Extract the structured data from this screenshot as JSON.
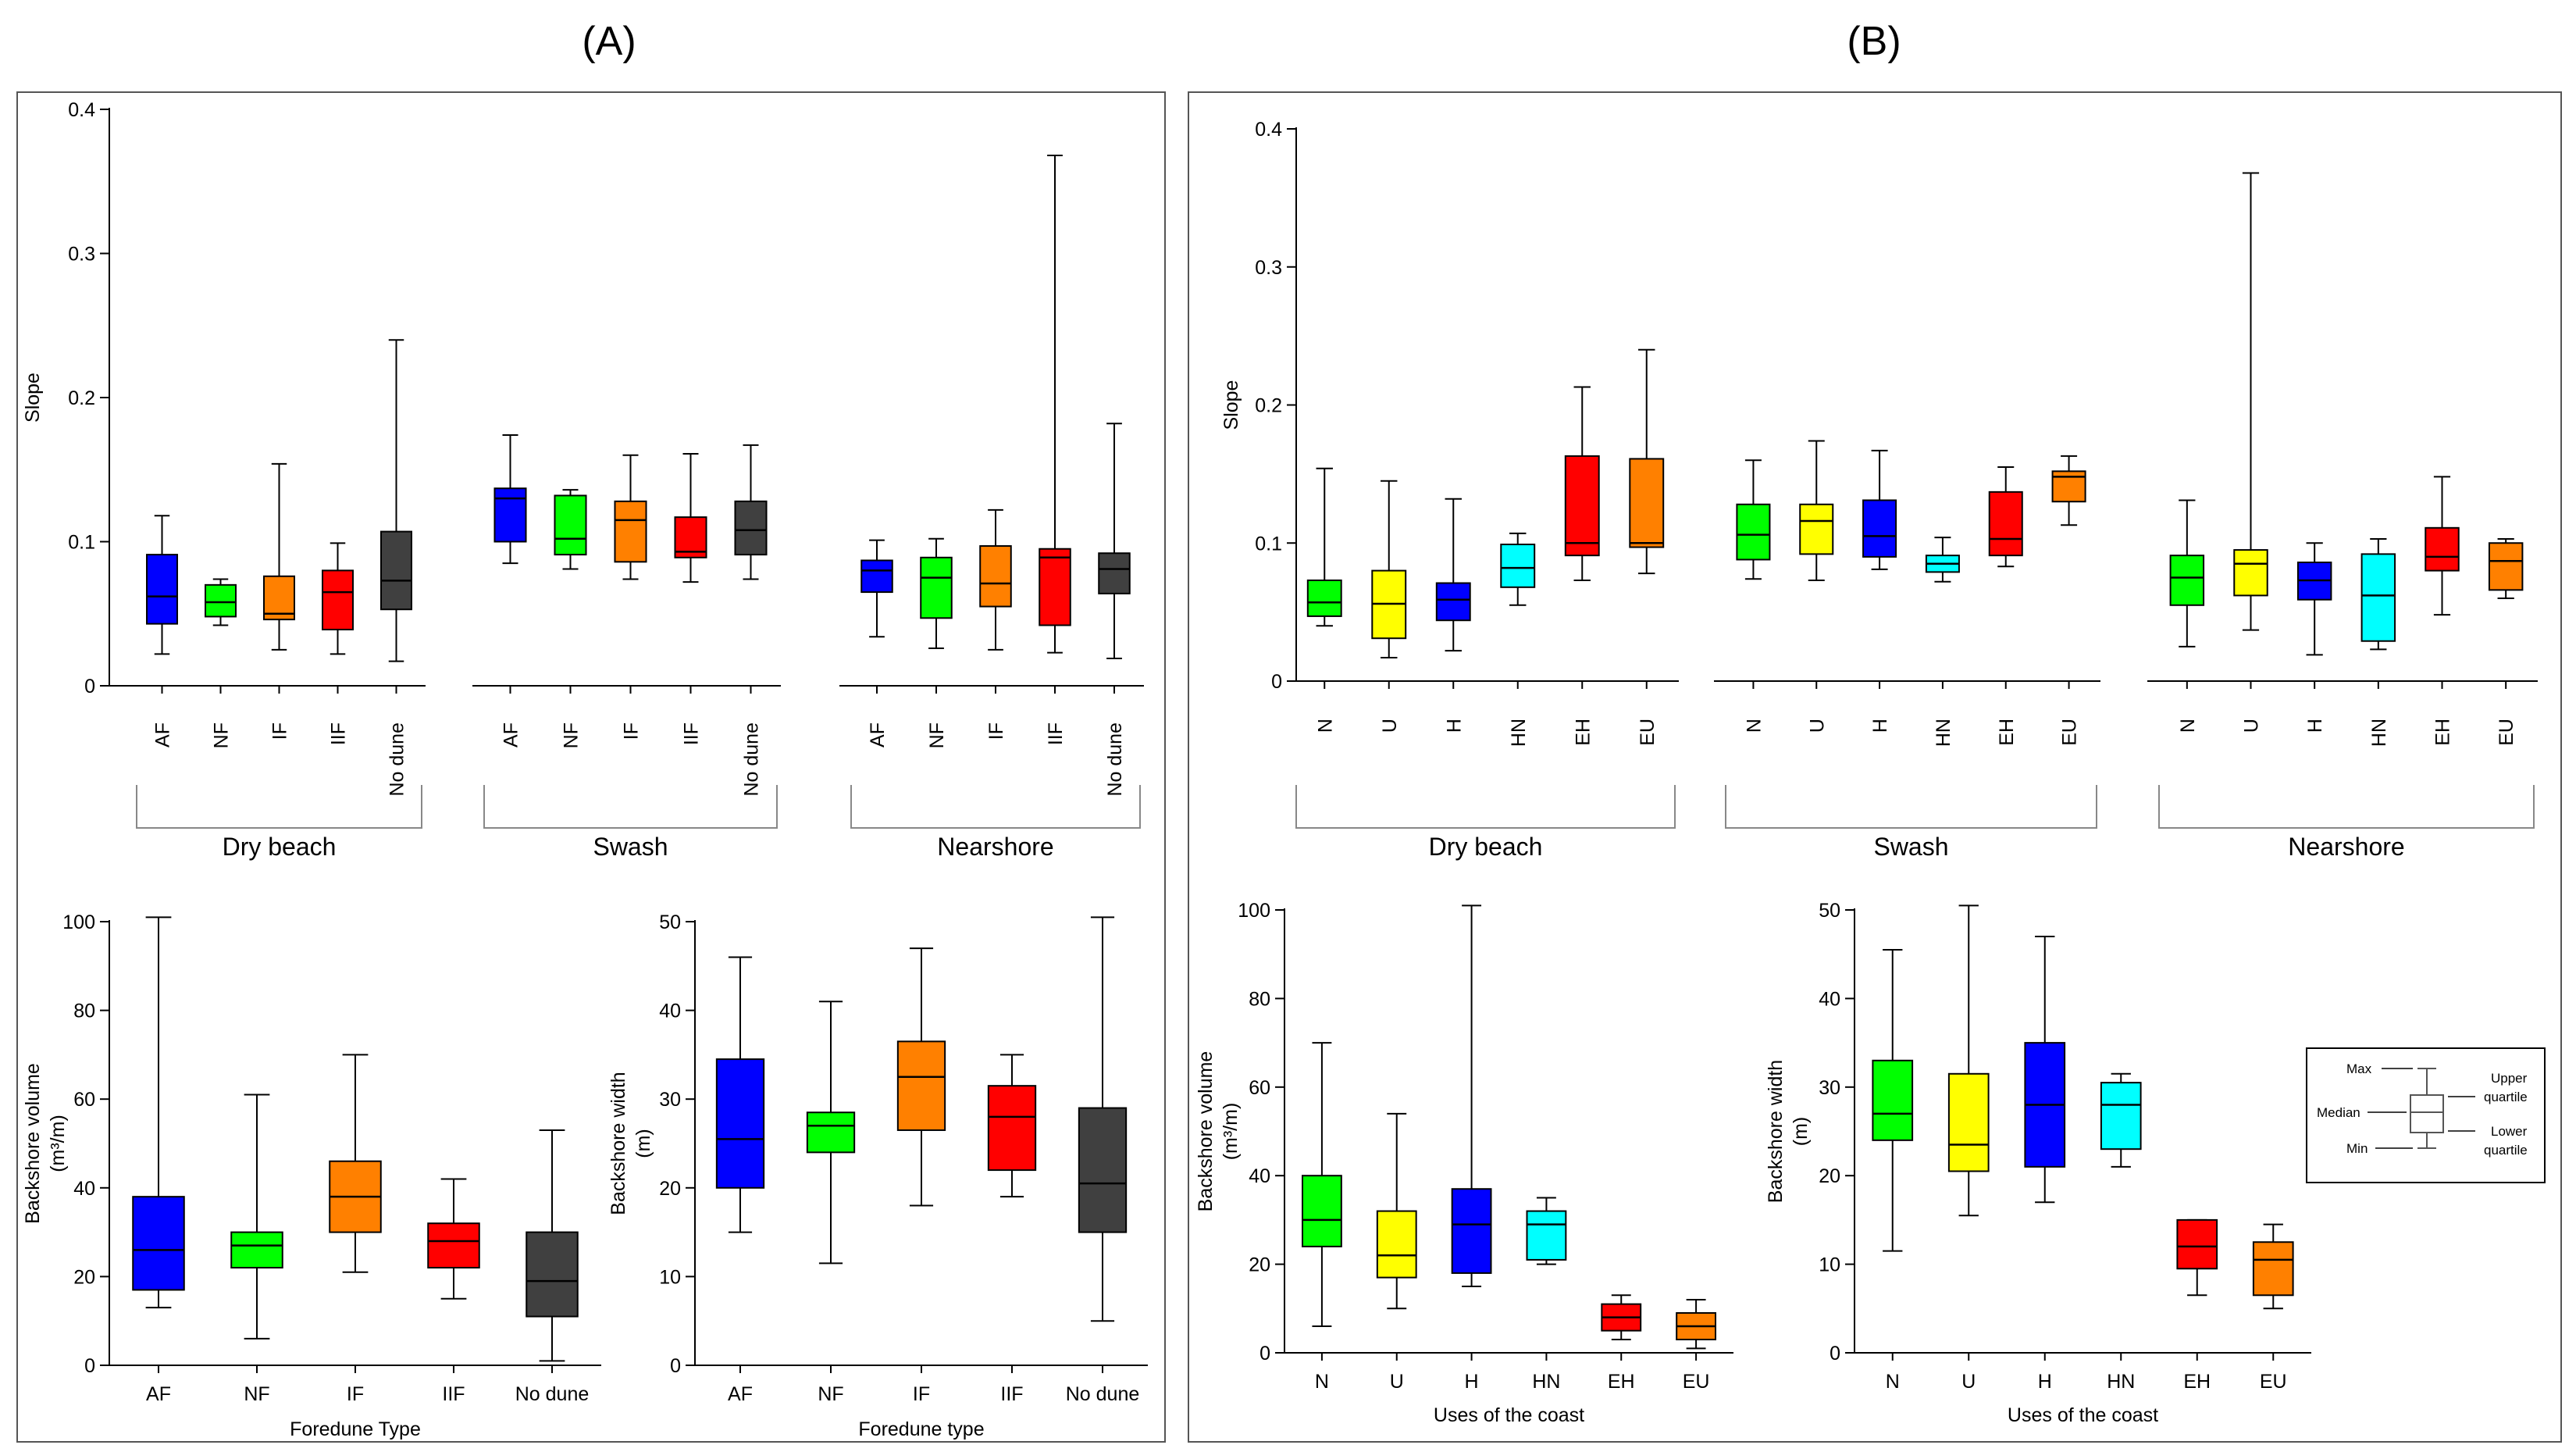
{
  "panels": [
    {
      "label": "(A)"
    },
    {
      "label": "(B)"
    }
  ],
  "colors": {
    "AF": "#0000ff",
    "NF": "#00ff00",
    "IF": "#ff8000",
    "IIF": "#ff0000",
    "No dune": "#404040",
    "N": "#00ff00",
    "U": "#ffff00",
    "H": "#0000ff",
    "HN": "#00ffff",
    "EH": "#ff0000",
    "EU": "#ff8000"
  },
  "legend": {
    "max": "Max",
    "median": "Median",
    "min": "Min",
    "upper1": "Upper",
    "upper2": "quartile",
    "lower1": "Lower",
    "lower2": "quartile"
  },
  "chart_data": [
    {
      "id": "A-slope",
      "type": "box",
      "ylabel": "Slope",
      "ylim": [
        0,
        0.4
      ],
      "yticks": [
        0,
        0.1,
        0.2,
        0.3,
        0.4
      ],
      "categories": [
        "AF",
        "NF",
        "IF",
        "IIF",
        "No dune"
      ],
      "groups": [
        {
          "name": "Dry beach",
          "boxes": [
            {
              "min": 0.022,
              "q1": 0.043,
              "median": 0.062,
              "q3": 0.091,
              "max": 0.118
            },
            {
              "min": 0.042,
              "q1": 0.048,
              "median": 0.058,
              "q3": 0.07,
              "max": 0.074
            },
            {
              "min": 0.025,
              "q1": 0.046,
              "median": 0.05,
              "q3": 0.076,
              "max": 0.154
            },
            {
              "min": 0.022,
              "q1": 0.039,
              "median": 0.065,
              "q3": 0.08,
              "max": 0.099
            },
            {
              "min": 0.017,
              "q1": 0.053,
              "median": 0.073,
              "q3": 0.107,
              "max": 0.24
            }
          ]
        },
        {
          "name": "Swash",
          "boxes": [
            {
              "min": 0.085,
              "q1": 0.1,
              "median": 0.13,
              "q3": 0.137,
              "max": 0.174
            },
            {
              "min": 0.081,
              "q1": 0.091,
              "median": 0.102,
              "q3": 0.132,
              "max": 0.136
            },
            {
              "min": 0.074,
              "q1": 0.086,
              "median": 0.115,
              "q3": 0.128,
              "max": 0.16
            },
            {
              "min": 0.072,
              "q1": 0.089,
              "median": 0.093,
              "q3": 0.117,
              "max": 0.161
            },
            {
              "min": 0.074,
              "q1": 0.091,
              "median": 0.108,
              "q3": 0.128,
              "max": 0.167
            }
          ]
        },
        {
          "name": "Nearshore",
          "boxes": [
            {
              "min": 0.034,
              "q1": 0.065,
              "median": 0.08,
              "q3": 0.087,
              "max": 0.101
            },
            {
              "min": 0.026,
              "q1": 0.047,
              "median": 0.075,
              "q3": 0.089,
              "max": 0.102
            },
            {
              "min": 0.025,
              "q1": 0.055,
              "median": 0.071,
              "q3": 0.097,
              "max": 0.122
            },
            {
              "min": 0.023,
              "q1": 0.042,
              "median": 0.089,
              "q3": 0.095,
              "max": 0.368
            },
            {
              "min": 0.019,
              "q1": 0.064,
              "median": 0.081,
              "q3": 0.092,
              "max": 0.182
            }
          ]
        }
      ]
    },
    {
      "id": "B-slope",
      "type": "box",
      "ylabel": "Slope",
      "ylim": [
        0,
        0.4
      ],
      "yticks": [
        0,
        0.1,
        0.2,
        0.3,
        0.4
      ],
      "categories": [
        "N",
        "U",
        "H",
        "HN",
        "EH",
        "EU"
      ],
      "groups": [
        {
          "name": "Dry beach",
          "boxes": [
            {
              "min": 0.04,
              "q1": 0.047,
              "median": 0.057,
              "q3": 0.073,
              "max": 0.154
            },
            {
              "min": 0.017,
              "q1": 0.031,
              "median": 0.056,
              "q3": 0.08,
              "max": 0.145
            },
            {
              "min": 0.022,
              "q1": 0.044,
              "median": 0.059,
              "q3": 0.071,
              "max": 0.132
            },
            {
              "min": 0.055,
              "q1": 0.068,
              "median": 0.082,
              "q3": 0.099,
              "max": 0.107
            },
            {
              "min": 0.073,
              "q1": 0.091,
              "median": 0.1,
              "q3": 0.163,
              "max": 0.213
            },
            {
              "min": 0.078,
              "q1": 0.097,
              "median": 0.1,
              "q3": 0.161,
              "max": 0.24
            }
          ]
        },
        {
          "name": "Swash",
          "boxes": [
            {
              "min": 0.074,
              "q1": 0.088,
              "median": 0.106,
              "q3": 0.128,
              "max": 0.16
            },
            {
              "min": 0.073,
              "q1": 0.092,
              "median": 0.116,
              "q3": 0.128,
              "max": 0.174
            },
            {
              "min": 0.081,
              "q1": 0.09,
              "median": 0.105,
              "q3": 0.131,
              "max": 0.167
            },
            {
              "min": 0.072,
              "q1": 0.079,
              "median": 0.085,
              "q3": 0.091,
              "max": 0.104
            },
            {
              "min": 0.083,
              "q1": 0.091,
              "median": 0.103,
              "q3": 0.137,
              "max": 0.155
            },
            {
              "min": 0.113,
              "q1": 0.13,
              "median": 0.148,
              "q3": 0.152,
              "max": 0.163
            }
          ]
        },
        {
          "name": "Nearshore",
          "boxes": [
            {
              "min": 0.025,
              "q1": 0.055,
              "median": 0.075,
              "q3": 0.091,
              "max": 0.131
            },
            {
              "min": 0.037,
              "q1": 0.062,
              "median": 0.085,
              "q3": 0.095,
              "max": 0.368
            },
            {
              "min": 0.019,
              "q1": 0.059,
              "median": 0.073,
              "q3": 0.086,
              "max": 0.1
            },
            {
              "min": 0.023,
              "q1": 0.029,
              "median": 0.062,
              "q3": 0.092,
              "max": 0.103
            },
            {
              "min": 0.048,
              "q1": 0.08,
              "median": 0.09,
              "q3": 0.111,
              "max": 0.148
            },
            {
              "min": 0.06,
              "q1": 0.066,
              "median": 0.087,
              "q3": 0.1,
              "max": 0.103
            }
          ]
        }
      ]
    },
    {
      "id": "A-volume",
      "type": "box",
      "ylabel": "Backshore volume",
      "ylabel2": "(m³/m)",
      "xlabel": "Foredune Type",
      "ylim": [
        0,
        100
      ],
      "yticks": [
        0,
        20,
        40,
        60,
        80,
        100
      ],
      "categories": [
        "AF",
        "NF",
        "IF",
        "IIF",
        "No dune"
      ],
      "boxes": [
        {
          "min": 13,
          "q1": 17,
          "median": 26,
          "q3": 38,
          "max": 101
        },
        {
          "min": 6,
          "q1": 22,
          "median": 27,
          "q3": 30,
          "max": 61
        },
        {
          "min": 21,
          "q1": 30,
          "median": 38,
          "q3": 46,
          "max": 70
        },
        {
          "min": 15,
          "q1": 22,
          "median": 28,
          "q3": 32,
          "max": 42
        },
        {
          "min": 1,
          "q1": 11,
          "median": 19,
          "q3": 30,
          "max": 53
        }
      ]
    },
    {
      "id": "A-width",
      "type": "box",
      "ylabel": "Backshore width",
      "ylabel2": "(m)",
      "xlabel": "Foredune type",
      "ylim": [
        0,
        50
      ],
      "yticks": [
        0,
        10,
        20,
        30,
        40,
        50
      ],
      "categories": [
        "AF",
        "NF",
        "IF",
        "IIF",
        "No dune"
      ],
      "boxes": [
        {
          "min": 15,
          "q1": 20,
          "median": 25.5,
          "q3": 34.5,
          "max": 46
        },
        {
          "min": 11.5,
          "q1": 24,
          "median": 27,
          "q3": 28.5,
          "max": 41
        },
        {
          "min": 18,
          "q1": 26.5,
          "median": 32.5,
          "q3": 36.5,
          "max": 47
        },
        {
          "min": 19,
          "q1": 22,
          "median": 28,
          "q3": 31.5,
          "max": 35
        },
        {
          "min": 5,
          "q1": 15,
          "median": 20.5,
          "q3": 29,
          "max": 50.5
        }
      ]
    },
    {
      "id": "B-volume",
      "type": "box",
      "ylabel": "Backshore volume",
      "ylabel2": "(m³/m)",
      "xlabel": "Uses of the coast",
      "ylim": [
        0,
        100
      ],
      "yticks": [
        0,
        20,
        40,
        60,
        80,
        100
      ],
      "categories": [
        "N",
        "U",
        "H",
        "HN",
        "EH",
        "EU"
      ],
      "boxes": [
        {
          "min": 6,
          "q1": 24,
          "median": 30,
          "q3": 40,
          "max": 70
        },
        {
          "min": 10,
          "q1": 17,
          "median": 22,
          "q3": 32,
          "max": 54
        },
        {
          "min": 15,
          "q1": 18,
          "median": 29,
          "q3": 37,
          "max": 101
        },
        {
          "min": 20,
          "q1": 21,
          "median": 29,
          "q3": 32,
          "max": 35
        },
        {
          "min": 3,
          "q1": 5,
          "median": 8,
          "q3": 11,
          "max": 13
        },
        {
          "min": 1,
          "q1": 3,
          "median": 6,
          "q3": 9,
          "max": 12
        }
      ]
    },
    {
      "id": "B-width",
      "type": "box",
      "ylabel": "Backshore width",
      "ylabel2": "(m)",
      "xlabel": "Uses of the coast",
      "ylim": [
        0,
        50
      ],
      "yticks": [
        0,
        10,
        20,
        30,
        40,
        50
      ],
      "categories": [
        "N",
        "U",
        "H",
        "HN",
        "EH",
        "EU"
      ],
      "boxes": [
        {
          "min": 11.5,
          "q1": 24,
          "median": 27,
          "q3": 33,
          "max": 45.5
        },
        {
          "min": 15.5,
          "q1": 20.5,
          "median": 23.5,
          "q3": 31.5,
          "max": 50.5
        },
        {
          "min": 17,
          "q1": 21,
          "median": 28,
          "q3": 35,
          "max": 47
        },
        {
          "min": 21,
          "q1": 23,
          "median": 28,
          "q3": 30.5,
          "max": 31.5
        },
        {
          "min": 6.5,
          "q1": 9.5,
          "median": 12,
          "q3": 15,
          "max": 15
        },
        {
          "min": 5,
          "q1": 6.5,
          "median": 10.5,
          "q3": 12.5,
          "max": 14.5
        }
      ]
    }
  ]
}
